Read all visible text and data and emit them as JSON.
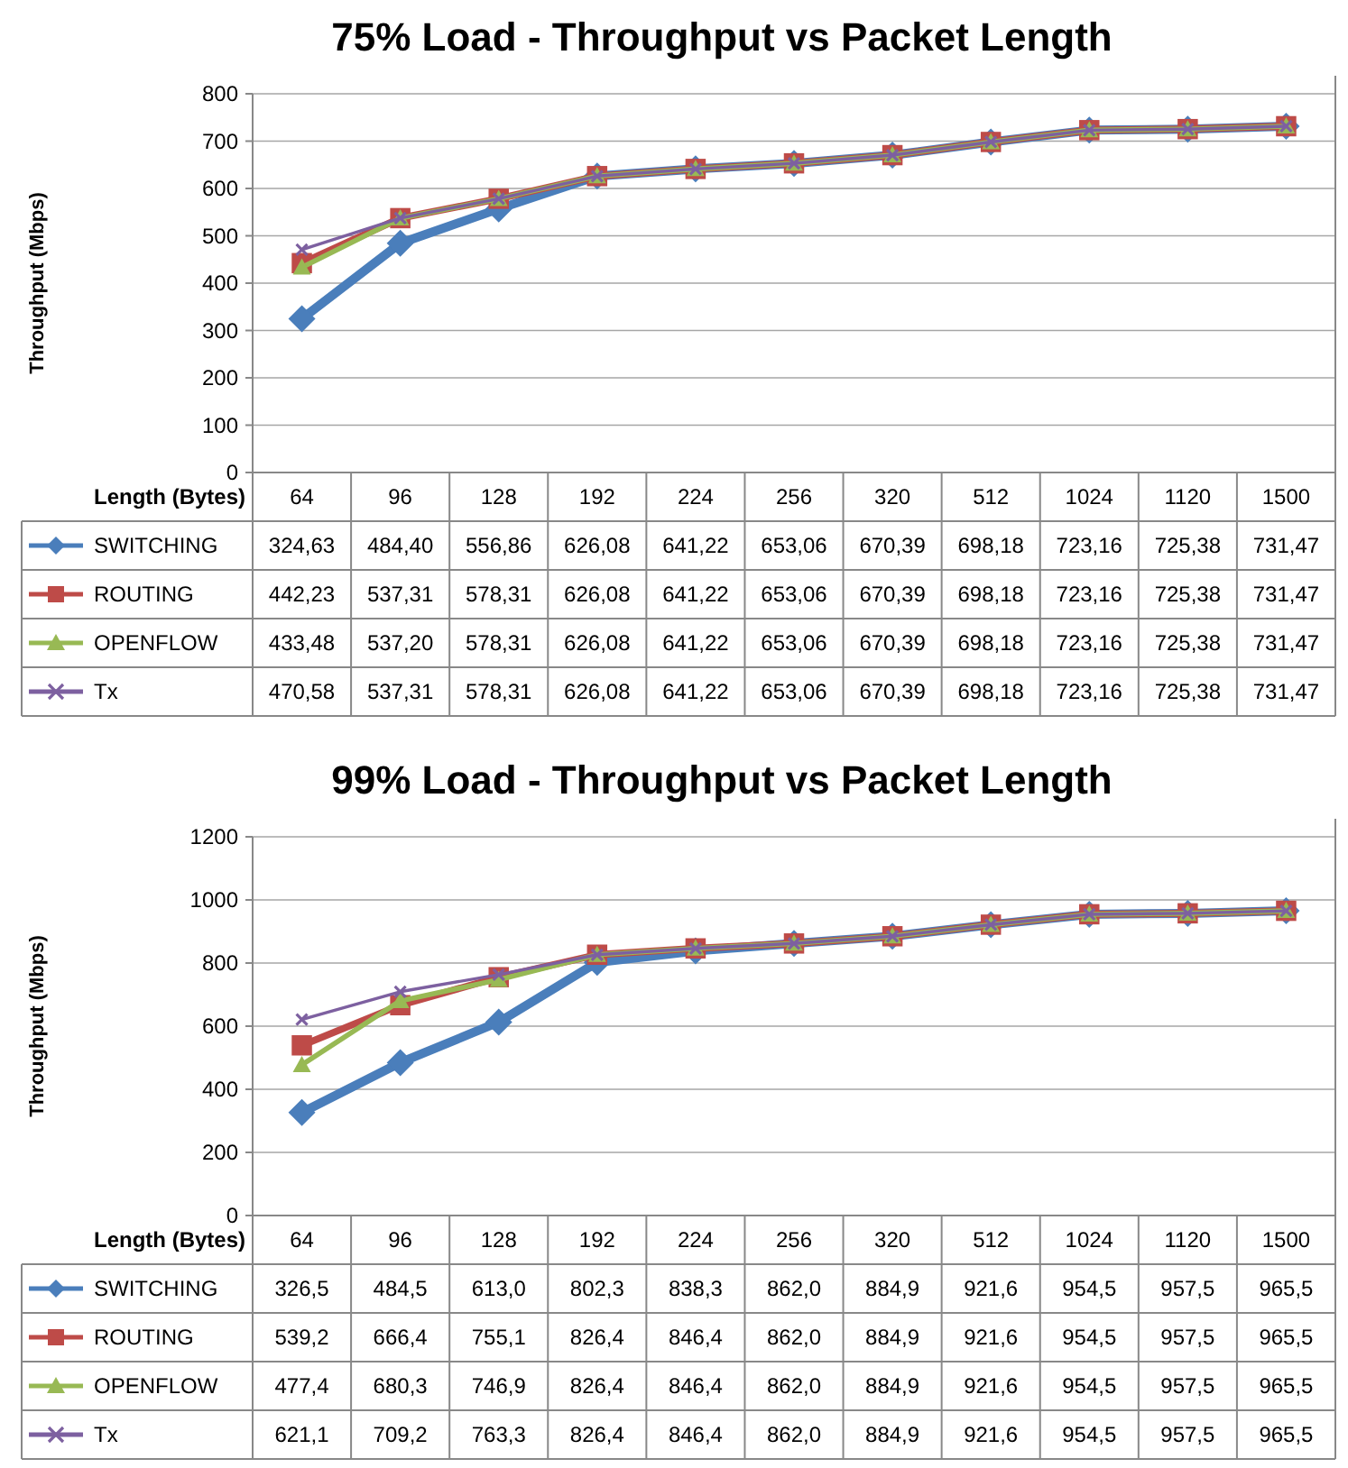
{
  "chart_data": [
    {
      "type": "line",
      "title": "75% Load - Throughput vs Packet Length",
      "xlabel": "Length (Bytes)",
      "ylabel": "Throughput (Mbps)",
      "categories": [
        "64",
        "96",
        "128",
        "192",
        "224",
        "256",
        "320",
        "512",
        "1024",
        "1120",
        "1500"
      ],
      "ylim": [
        0,
        800
      ],
      "yticks": [
        0,
        100,
        200,
        300,
        400,
        500,
        600,
        700,
        800
      ],
      "grid": "y",
      "legend": "bottom",
      "line_style": "solid",
      "series": [
        {
          "name": "SWITCHING",
          "color": "#4a7ebb",
          "marker": "diamond",
          "values": [
            324.63,
            484.4,
            556.86,
            626.08,
            641.22,
            653.06,
            670.39,
            698.18,
            723.16,
            725.38,
            731.47
          ],
          "value_labels": [
            "324,63",
            "484,40",
            "556,86",
            "626,08",
            "641,22",
            "653,06",
            "670,39",
            "698,18",
            "723,16",
            "725,38",
            "731,47"
          ]
        },
        {
          "name": "ROUTING",
          "color": "#be4b48",
          "marker": "square",
          "values": [
            442.23,
            537.31,
            578.31,
            626.08,
            641.22,
            653.06,
            670.39,
            698.18,
            723.16,
            725.38,
            731.47
          ],
          "value_labels": [
            "442,23",
            "537,31",
            "578,31",
            "626,08",
            "641,22",
            "653,06",
            "670,39",
            "698,18",
            "723,16",
            "725,38",
            "731,47"
          ]
        },
        {
          "name": "OPENFLOW",
          "color": "#98b954",
          "marker": "triangle",
          "values": [
            433.48,
            537.2,
            578.31,
            626.08,
            641.22,
            653.06,
            670.39,
            698.18,
            723.16,
            725.38,
            731.47
          ],
          "value_labels": [
            "433,48",
            "537,20",
            "578,31",
            "626,08",
            "641,22",
            "653,06",
            "670,39",
            "698,18",
            "723,16",
            "725,38",
            "731,47"
          ]
        },
        {
          "name": "Tx",
          "color": "#7d60a0",
          "marker": "cross",
          "values": [
            470.58,
            537.31,
            578.31,
            626.08,
            641.22,
            653.06,
            670.39,
            698.18,
            723.16,
            725.38,
            731.47
          ],
          "value_labels": [
            "470,58",
            "537,31",
            "578,31",
            "626,08",
            "641,22",
            "653,06",
            "670,39",
            "698,18",
            "723,16",
            "725,38",
            "731,47"
          ]
        }
      ]
    },
    {
      "type": "line",
      "title": "99% Load - Throughput vs Packet Length",
      "xlabel": "Length (Bytes)",
      "ylabel": "Throughput (Mbps)",
      "categories": [
        "64",
        "96",
        "128",
        "192",
        "224",
        "256",
        "320",
        "512",
        "1024",
        "1120",
        "1500"
      ],
      "ylim": [
        0,
        1200
      ],
      "yticks": [
        0,
        200,
        400,
        600,
        800,
        1000,
        1200
      ],
      "grid": "y",
      "legend": "bottom",
      "line_style": "solid",
      "series": [
        {
          "name": "SWITCHING",
          "color": "#4a7ebb",
          "marker": "diamond",
          "values": [
            326.5,
            484.5,
            613.0,
            802.3,
            838.3,
            862.0,
            884.9,
            921.6,
            954.5,
            957.5,
            965.5
          ],
          "value_labels": [
            "326,5",
            "484,5",
            "613,0",
            "802,3",
            "838,3",
            "862,0",
            "884,9",
            "921,6",
            "954,5",
            "957,5",
            "965,5"
          ]
        },
        {
          "name": "ROUTING",
          "color": "#be4b48",
          "marker": "square",
          "values": [
            539.2,
            666.4,
            755.1,
            826.4,
            846.4,
            862.0,
            884.9,
            921.6,
            954.5,
            957.5,
            965.5
          ],
          "value_labels": [
            "539,2",
            "666,4",
            "755,1",
            "826,4",
            "846,4",
            "862,0",
            "884,9",
            "921,6",
            "954,5",
            "957,5",
            "965,5"
          ]
        },
        {
          "name": "OPENFLOW",
          "color": "#98b954",
          "marker": "triangle",
          "values": [
            477.4,
            680.3,
            746.9,
            826.4,
            846.4,
            862.0,
            884.9,
            921.6,
            954.5,
            957.5,
            965.5
          ],
          "value_labels": [
            "477,4",
            "680,3",
            "746,9",
            "826,4",
            "846,4",
            "862,0",
            "884,9",
            "921,6",
            "954,5",
            "957,5",
            "965,5"
          ]
        },
        {
          "name": "Tx",
          "color": "#7d60a0",
          "marker": "cross",
          "values": [
            621.1,
            709.2,
            763.3,
            826.4,
            846.4,
            862.0,
            884.9,
            921.6,
            954.5,
            957.5,
            965.5
          ],
          "value_labels": [
            "621,1",
            "709,2",
            "763,3",
            "826,4",
            "846,4",
            "862,0",
            "884,9",
            "921,6",
            "954,5",
            "957,5",
            "965,5"
          ]
        }
      ]
    }
  ]
}
